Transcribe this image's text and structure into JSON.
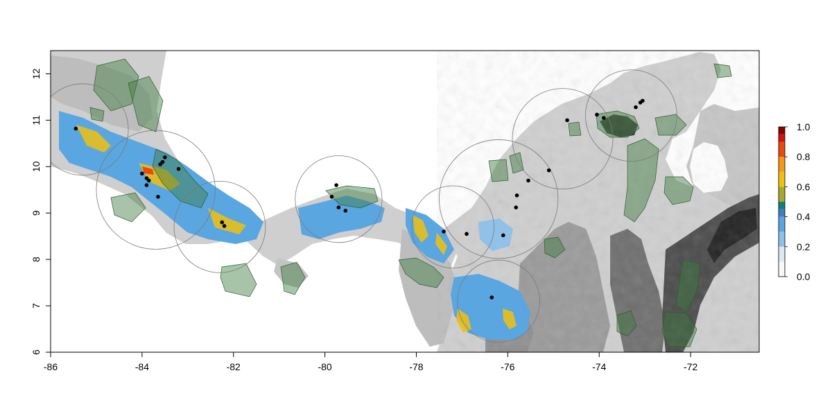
{
  "map": {
    "x_axis": {
      "range": [
        -86,
        -70.5
      ],
      "ticks": [
        {
          "value": -86,
          "label": "-86"
        },
        {
          "value": -84,
          "label": "-84"
        },
        {
          "value": -82,
          "label": "-82"
        },
        {
          "value": -80,
          "label": "-80"
        },
        {
          "value": -78,
          "label": "-78"
        },
        {
          "value": -76,
          "label": "-76"
        },
        {
          "value": -74,
          "label": "-74"
        },
        {
          "value": -72,
          "label": "-72"
        }
      ]
    },
    "y_axis": {
      "range": [
        6,
        12.5
      ],
      "ticks": [
        {
          "value": 6,
          "label": "6"
        },
        {
          "value": 7,
          "label": "7"
        },
        {
          "value": 8,
          "label": "8"
        },
        {
          "value": 9,
          "label": "9"
        },
        {
          "value": 10,
          "label": "10"
        },
        {
          "value": 11,
          "label": "11"
        },
        {
          "value": 12,
          "label": "12"
        }
      ]
    },
    "colors": {
      "land": "#c9c9c9",
      "mountain": "#2b2b2b",
      "protected_area": "#3e7d3e",
      "buffer_circle": "#7a7a7a",
      "point": "#000000"
    },
    "legend": {
      "position": "right",
      "ticks": [
        {
          "value": 0.0,
          "label": "0.0"
        },
        {
          "value": 0.2,
          "label": "0.2"
        },
        {
          "value": 0.4,
          "label": "0.4"
        },
        {
          "value": 0.6,
          "label": "0.6"
        },
        {
          "value": 0.8,
          "label": "0.8"
        },
        {
          "value": 1.0,
          "label": "1.0"
        }
      ],
      "bands": [
        {
          "from": 0.0,
          "to": 0.1,
          "color": "#f7f7f7"
        },
        {
          "from": 0.1,
          "to": 0.2,
          "color": "#dfe8f0"
        },
        {
          "from": 0.2,
          "to": 0.3,
          "color": "#8cc0ea"
        },
        {
          "from": 0.3,
          "to": 0.4,
          "color": "#5aa6e0"
        },
        {
          "from": 0.4,
          "to": 0.45,
          "color": "#3e7fc4"
        },
        {
          "from": 0.45,
          "to": 0.5,
          "color": "#0f7f7f"
        },
        {
          "from": 0.5,
          "to": 0.6,
          "color": "#a7a830"
        },
        {
          "from": 0.6,
          "to": 0.7,
          "color": "#f0c010"
        },
        {
          "from": 0.7,
          "to": 0.8,
          "color": "#f59a10"
        },
        {
          "from": 0.8,
          "to": 0.9,
          "color": "#e84a10"
        },
        {
          "from": 0.9,
          "to": 0.95,
          "color": "#d41010"
        },
        {
          "from": 0.95,
          "to": 1.0,
          "color": "#8a0000"
        }
      ]
    },
    "buffer_circles": [
      {
        "lon": -85.3,
        "lat": 10.8,
        "r_deg": 1.0
      },
      {
        "lon": -83.7,
        "lat": 9.5,
        "r_deg": 1.3
      },
      {
        "lon": -82.3,
        "lat": 8.7,
        "r_deg": 1.0
      },
      {
        "lon": -79.7,
        "lat": 9.3,
        "r_deg": 0.95
      },
      {
        "lon": -77.2,
        "lat": 8.7,
        "r_deg": 0.9
      },
      {
        "lon": -76.2,
        "lat": 7.1,
        "r_deg": 0.9
      },
      {
        "lon": -76.2,
        "lat": 9.3,
        "r_deg": 1.3
      },
      {
        "lon": -74.8,
        "lat": 10.6,
        "r_deg": 1.1
      },
      {
        "lon": -73.3,
        "lat": 11.1,
        "r_deg": 1.0
      }
    ],
    "points": [
      {
        "lon": -85.45,
        "lat": 10.82
      },
      {
        "lon": -83.5,
        "lat": 10.2
      },
      {
        "lon": -83.55,
        "lat": 10.1
      },
      {
        "lon": -83.6,
        "lat": 10.05
      },
      {
        "lon": -83.2,
        "lat": 9.95
      },
      {
        "lon": -84.0,
        "lat": 9.85
      },
      {
        "lon": -83.9,
        "lat": 9.75
      },
      {
        "lon": -83.85,
        "lat": 9.7
      },
      {
        "lon": -83.9,
        "lat": 9.6
      },
      {
        "lon": -83.65,
        "lat": 9.35
      },
      {
        "lon": -82.25,
        "lat": 8.8
      },
      {
        "lon": -82.2,
        "lat": 8.72
      },
      {
        "lon": -79.75,
        "lat": 9.6
      },
      {
        "lon": -79.85,
        "lat": 9.35
      },
      {
        "lon": -79.7,
        "lat": 9.12
      },
      {
        "lon": -79.55,
        "lat": 9.05
      },
      {
        "lon": -77.4,
        "lat": 8.6
      },
      {
        "lon": -76.9,
        "lat": 8.55
      },
      {
        "lon": -76.1,
        "lat": 8.52
      },
      {
        "lon": -76.35,
        "lat": 7.18
      },
      {
        "lon": -75.82,
        "lat": 9.12
      },
      {
        "lon": -75.8,
        "lat": 9.38
      },
      {
        "lon": -75.55,
        "lat": 9.7
      },
      {
        "lon": -75.1,
        "lat": 9.92
      },
      {
        "lon": -74.7,
        "lat": 11.0
      },
      {
        "lon": -74.05,
        "lat": 11.12
      },
      {
        "lon": -73.9,
        "lat": 11.05
      },
      {
        "lon": -73.2,
        "lat": 11.28
      },
      {
        "lon": -73.1,
        "lat": 11.38
      },
      {
        "lon": -73.05,
        "lat": 11.42
      }
    ]
  }
}
